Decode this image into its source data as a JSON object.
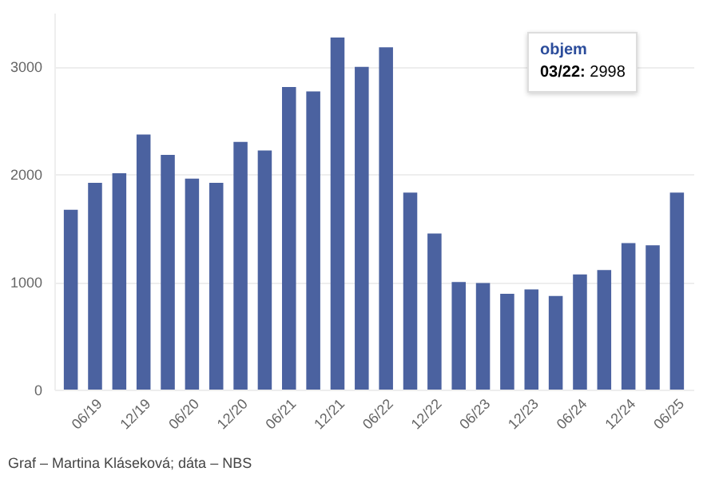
{
  "chart_data": {
    "type": "bar",
    "categories": [
      null,
      "06/19",
      null,
      "12/19",
      null,
      "06/20",
      null,
      "12/20",
      null,
      "06/21",
      null,
      "12/21",
      null,
      "06/22",
      null,
      "12/22",
      null,
      "06/23",
      null,
      "12/23",
      null,
      "06/24",
      null,
      "12/24",
      null,
      "06/25"
    ],
    "series": [
      {
        "color": "#4b62a0",
        "values": [
          1670,
          1920,
          2010,
          2370,
          2180,
          1960,
          1920,
          2300,
          2220,
          2810,
          2770,
          3270,
          2998,
          3180,
          1830,
          1450,
          1000,
          990,
          890,
          930,
          870,
          1070,
          1110,
          1360,
          1340,
          1830
        ]
      }
    ],
    "ylim": [
      0,
      3500
    ],
    "yticks": [
      0,
      1000,
      2000,
      3000
    ],
    "grid": "y",
    "annotations": [
      "objem",
      "03/22: 2998",
      "Graf – Martina Kláseková; dáta – NBS"
    ]
  }
}
